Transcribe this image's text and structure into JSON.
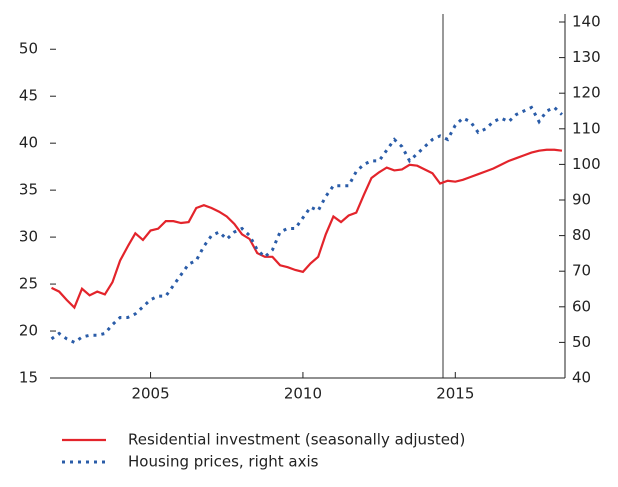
{
  "chart_data": {
    "type": "line",
    "x": [
      2001.75,
      2002,
      2002.25,
      2002.5,
      2002.75,
      2003,
      2003.25,
      2003.5,
      2003.75,
      2004,
      2004.25,
      2004.5,
      2004.75,
      2005,
      2005.25,
      2005.5,
      2005.75,
      2006,
      2006.25,
      2006.5,
      2006.75,
      2007,
      2007.25,
      2007.5,
      2007.75,
      2008,
      2008.25,
      2008.5,
      2008.75,
      2009,
      2009.25,
      2009.5,
      2009.75,
      2010,
      2010.25,
      2010.5,
      2010.75,
      2011,
      2011.25,
      2011.5,
      2011.75,
      2012,
      2012.25,
      2012.5,
      2012.75,
      2013,
      2013.25,
      2013.5,
      2013.75,
      2014,
      2014.25,
      2014.5,
      2014.75,
      2015,
      2015.25,
      2015.5,
      2015.75,
      2016,
      2016.25,
      2016.5,
      2016.75,
      2017,
      2017.25,
      2017.5,
      2017.75,
      2018,
      2018.25,
      2018.5
    ],
    "series": [
      {
        "name": "Residential investment (seasonally adjusted)",
        "color": "#e3242b",
        "axis": "y",
        "values": [
          24.6,
          24.2,
          23.3,
          22.5,
          24.5,
          23.8,
          24.2,
          23.9,
          25.2,
          27.5,
          29.0,
          30.4,
          29.7,
          30.7,
          30.9,
          31.7,
          31.7,
          31.5,
          31.6,
          33.1,
          33.4,
          33.1,
          32.7,
          32.2,
          31.4,
          30.3,
          29.8,
          28.3,
          27.9,
          27.9,
          27.0,
          26.8,
          26.5,
          26.3,
          27.2,
          27.9,
          30.3,
          32.2,
          31.6,
          32.3,
          32.6,
          34.5,
          36.3,
          36.9,
          37.4,
          37.1,
          37.2,
          37.7,
          37.6,
          37.2,
          36.8,
          35.7,
          36.0,
          35.9,
          36.1,
          36.4,
          36.7,
          37.0,
          37.3,
          37.7,
          38.1,
          38.4,
          38.7,
          39.0,
          39.2,
          39.3,
          39.3,
          39.2
        ]
      },
      {
        "name": "Housing prices, right axis",
        "color": "#2a5ca8",
        "axis": "y2",
        "dash": "dotted",
        "values": [
          51,
          52.5,
          51,
          50,
          51.5,
          52,
          52,
          52.5,
          55,
          57,
          57,
          58,
          60,
          62,
          63,
          63,
          66,
          69,
          72,
          73,
          77,
          80,
          81,
          79,
          81,
          82,
          80,
          76,
          74,
          76,
          81,
          82,
          82,
          85,
          88,
          87,
          91,
          94,
          94,
          94,
          98,
          100,
          101,
          101,
          104,
          107,
          105,
          101,
          103,
          105,
          107,
          108,
          107,
          111,
          113,
          112,
          109,
          110,
          112,
          113,
          112,
          114,
          115,
          116,
          112,
          115,
          116,
          114
        ]
      }
    ],
    "xlim": [
      2001.7,
      2018.6
    ],
    "xticks": [
      2005,
      2010,
      2015
    ],
    "ylim": [
      15,
      52.9
    ],
    "yticks": [
      15,
      20,
      25,
      30,
      35,
      40,
      45,
      50
    ],
    "y2lim": [
      40,
      140
    ],
    "y2ticks": [
      40,
      50,
      60,
      70,
      80,
      90,
      100,
      110,
      120,
      130,
      140
    ]
  }
}
